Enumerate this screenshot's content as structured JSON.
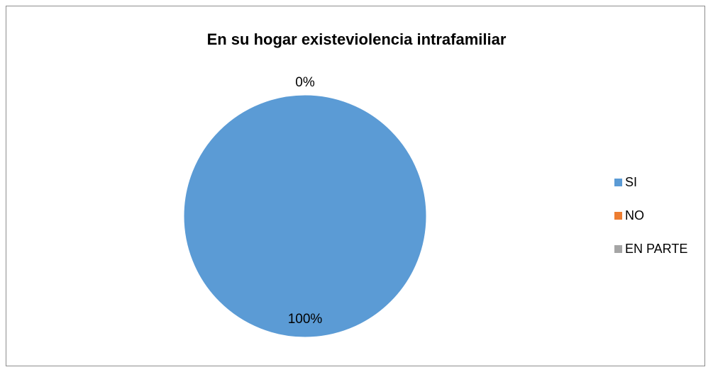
{
  "chart_data": {
    "type": "pie",
    "title": "En su hogar existeviolencia intrafamiliar",
    "series": [
      {
        "name": "SI",
        "value": 100,
        "label": "100%",
        "color": "#5b9bd5"
      },
      {
        "name": "NO",
        "value": 0,
        "label": "0%",
        "color": "#ed7d31"
      },
      {
        "name": "EN PARTE",
        "value": 0,
        "label": "",
        "color": "#a5a5a5"
      }
    ],
    "legend_placement": "right"
  }
}
